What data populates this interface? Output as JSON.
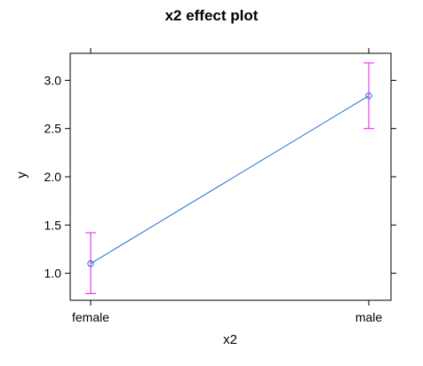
{
  "chart_data": {
    "type": "line",
    "title": "x2 effect plot",
    "xlabel": "x2",
    "ylabel": "y",
    "categories": [
      "female",
      "male"
    ],
    "series": [
      {
        "values": [
          1.1,
          2.84
        ],
        "lower": [
          0.79,
          2.5
        ],
        "upper": [
          1.42,
          3.18
        ]
      }
    ],
    "yticks": [
      1.0,
      1.5,
      2.0,
      2.5,
      3.0
    ],
    "ytick_labels": [
      "1.0",
      "1.5",
      "2.0",
      "2.5",
      "3.0"
    ],
    "ylim": [
      0.72,
      3.28
    ],
    "grid": false,
    "colors": {
      "line": "#1f6fd8",
      "point": "#1f6fd8",
      "errorbar": "#e619e6",
      "frame": "#000000"
    }
  }
}
